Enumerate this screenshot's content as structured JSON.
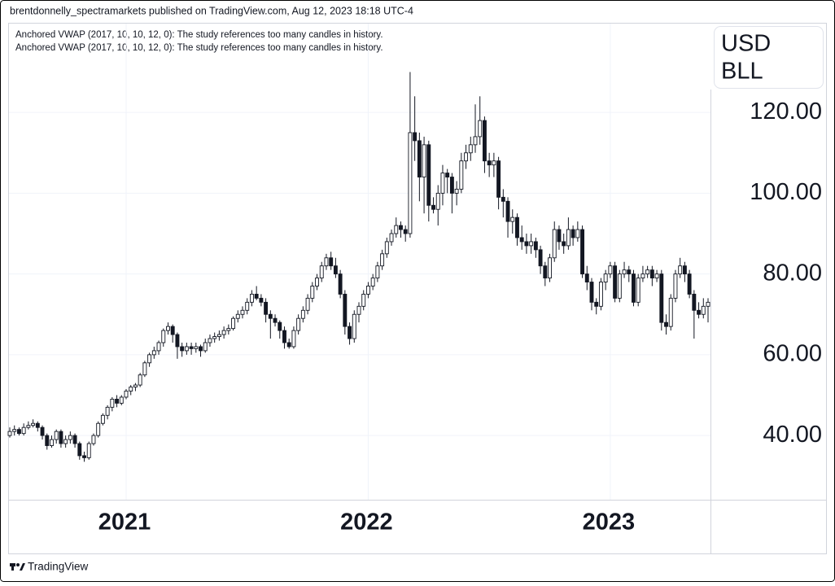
{
  "header": "brentdonnelly_spectramarkets published on TradingView.com, Aug 12, 2023 18:18 UTC-4",
  "footer": "TradingView",
  "chart_data": {
    "type": "candlestick",
    "annotations": [
      "Anchored VWAP (2017, 10, 10, 12, 0): The study references too many candles in history.",
      "Anchored VWAP (2017, 10, 10, 12, 0): The study references too many candles in history."
    ],
    "unit_label": [
      "USD",
      "BLL"
    ],
    "categories": [
      null,
      null,
      null,
      null,
      null,
      null,
      null,
      null,
      null,
      null,
      null,
      null,
      null,
      null,
      null,
      null,
      null,
      null,
      null,
      null,
      null,
      null,
      null,
      null,
      null,
      "2021",
      null,
      null,
      null,
      null,
      null,
      null,
      null,
      null,
      null,
      null,
      null,
      null,
      null,
      null,
      null,
      null,
      null,
      null,
      null,
      null,
      null,
      null,
      null,
      null,
      null,
      null,
      null,
      null,
      null,
      null,
      null,
      null,
      null,
      null,
      null,
      null,
      null,
      null,
      null,
      null,
      null,
      null,
      null,
      null,
      null,
      null,
      null,
      null,
      null,
      null,
      null,
      "2022",
      null,
      null,
      null,
      null,
      null,
      null,
      null,
      null,
      null,
      null,
      null,
      null,
      null,
      null,
      null,
      null,
      null,
      null,
      null,
      null,
      null,
      null,
      null,
      null,
      null,
      null,
      null,
      null,
      null,
      null,
      null,
      null,
      null,
      null,
      null,
      null,
      null,
      null,
      null,
      null,
      null,
      null,
      null,
      null,
      null,
      null,
      null,
      null,
      null,
      null,
      null,
      "2023",
      null,
      null,
      null,
      null,
      null,
      null,
      null,
      null,
      null,
      null,
      null,
      null,
      null,
      null,
      null,
      null,
      null,
      null,
      null,
      null,
      null
    ],
    "ohlc": [
      [
        40,
        42,
        39.5,
        41
      ],
      [
        41,
        42.5,
        40,
        41.5
      ],
      [
        41.5,
        42,
        40,
        40.5
      ],
      [
        40.5,
        43,
        40,
        42
      ],
      [
        42,
        43.5,
        41.5,
        42.5
      ],
      [
        42.5,
        44,
        42,
        43
      ],
      [
        43,
        43.5,
        41,
        42
      ],
      [
        42,
        42.5,
        39,
        40
      ],
      [
        40,
        40.5,
        36.5,
        37.5
      ],
      [
        37.5,
        40,
        37,
        39
      ],
      [
        39,
        41.5,
        38,
        41
      ],
      [
        41,
        41.5,
        37,
        38
      ],
      [
        38,
        40,
        37,
        39
      ],
      [
        39,
        41,
        38,
        40
      ],
      [
        40,
        40.5,
        37,
        38
      ],
      [
        38,
        38.5,
        34,
        35
      ],
      [
        35,
        36,
        33.5,
        34.5
      ],
      [
        34.5,
        38.5,
        34,
        38
      ],
      [
        38,
        40.5,
        37.5,
        40
      ],
      [
        40,
        43.5,
        39.5,
        43
      ],
      [
        43,
        45.5,
        42.5,
        45
      ],
      [
        45,
        47.5,
        44,
        47
      ],
      [
        47,
        49.5,
        46,
        49
      ],
      [
        49,
        50,
        47,
        48
      ],
      [
        48,
        50,
        47.5,
        49.5
      ],
      [
        49.5,
        51.5,
        49,
        51
      ],
      [
        51,
        52.5,
        50,
        52
      ],
      [
        52,
        53,
        51,
        52.5
      ],
      [
        52.5,
        55.5,
        52,
        55
      ],
      [
        55,
        58.5,
        54.5,
        58
      ],
      [
        58,
        60.5,
        57,
        60
      ],
      [
        60,
        62,
        59,
        61
      ],
      [
        61,
        63.5,
        60,
        63
      ],
      [
        63,
        66.5,
        62,
        66
      ],
      [
        66,
        68,
        65,
        67
      ],
      [
        67,
        67.5,
        63,
        65
      ],
      [
        65,
        65.5,
        59,
        62
      ],
      [
        62,
        63,
        59.5,
        61
      ],
      [
        61,
        63,
        60,
        62
      ],
      [
        62,
        63,
        60,
        61.5
      ],
      [
        61.5,
        63,
        60.5,
        62
      ],
      [
        62,
        62.5,
        59.5,
        61
      ],
      [
        61,
        64,
        60.5,
        63
      ],
      [
        63,
        65,
        62,
        64
      ],
      [
        64,
        65.5,
        63,
        64.5
      ],
      [
        64.5,
        66,
        63.5,
        65
      ],
      [
        65,
        67,
        64,
        66
      ],
      [
        66,
        67.5,
        65,
        66.5
      ],
      [
        66.5,
        69.5,
        66,
        69
      ],
      [
        69,
        71,
        68,
        70
      ],
      [
        70,
        72,
        69,
        71
      ],
      [
        71,
        74,
        70,
        73
      ],
      [
        73,
        76,
        72,
        75
      ],
      [
        75,
        77,
        73.5,
        74
      ],
      [
        74,
        75,
        72,
        73
      ],
      [
        73,
        74,
        68,
        70
      ],
      [
        70,
        71,
        64,
        69
      ],
      [
        69,
        70,
        67,
        68
      ],
      [
        68,
        68.5,
        64,
        66
      ],
      [
        66,
        67,
        61.5,
        63
      ],
      [
        63,
        64,
        61.5,
        62
      ],
      [
        62,
        67,
        61.5,
        66
      ],
      [
        66,
        70,
        65,
        69
      ],
      [
        69,
        72,
        68,
        71
      ],
      [
        71,
        75,
        70,
        74
      ],
      [
        74,
        78,
        73,
        77
      ],
      [
        77,
        80,
        76,
        79
      ],
      [
        79,
        83,
        78,
        82
      ],
      [
        82,
        85,
        81,
        84
      ],
      [
        84,
        85.5,
        81,
        82
      ],
      [
        82,
        84,
        79,
        80
      ],
      [
        80,
        81,
        74,
        75
      ],
      [
        75,
        76,
        65,
        67
      ],
      [
        67,
        68,
        62.5,
        64
      ],
      [
        64,
        71,
        63,
        70
      ],
      [
        70,
        73,
        68,
        72
      ],
      [
        72,
        76,
        71,
        75
      ],
      [
        75,
        78,
        74,
        77
      ],
      [
        77,
        80,
        76,
        79
      ],
      [
        79,
        83,
        78,
        82
      ],
      [
        82,
        86,
        81,
        85
      ],
      [
        85,
        89,
        84,
        88
      ],
      [
        88,
        91,
        87,
        90
      ],
      [
        90,
        94,
        89,
        92
      ],
      [
        92,
        93,
        89,
        91
      ],
      [
        91,
        92,
        88,
        90
      ],
      [
        90,
        130,
        89,
        115
      ],
      [
        115,
        124,
        108,
        113
      ],
      [
        113,
        115,
        98,
        104
      ],
      [
        104,
        114,
        95,
        112
      ],
      [
        112,
        113,
        93,
        97
      ],
      [
        97,
        99,
        95,
        96
      ],
      [
        96,
        102,
        92,
        100
      ],
      [
        100,
        107,
        97,
        105
      ],
      [
        105,
        106,
        100,
        104
      ],
      [
        104,
        105,
        95,
        100
      ],
      [
        100,
        103,
        97,
        101
      ],
      [
        101,
        110,
        100,
        108
      ],
      [
        108,
        112,
        106,
        110
      ],
      [
        110,
        114,
        108,
        112
      ],
      [
        112,
        122,
        110,
        114
      ],
      [
        114,
        124,
        112,
        118
      ],
      [
        118,
        119,
        105,
        108
      ],
      [
        108,
        110,
        104,
        107
      ],
      [
        107,
        110,
        104,
        108
      ],
      [
        108,
        109,
        96,
        99
      ],
      [
        99,
        101,
        94,
        98
      ],
      [
        98,
        99,
        89,
        93
      ],
      [
        93,
        96,
        90,
        94
      ],
      [
        94,
        95,
        87,
        89
      ],
      [
        89,
        92,
        86,
        88
      ],
      [
        88,
        90,
        85,
        87
      ],
      [
        87,
        90,
        85,
        88
      ],
      [
        88,
        89,
        84,
        86
      ],
      [
        86,
        87,
        80,
        82
      ],
      [
        82,
        83,
        77,
        79
      ],
      [
        79,
        85,
        78,
        84
      ],
      [
        84,
        93,
        83,
        91
      ],
      [
        91,
        92,
        86,
        88
      ],
      [
        88,
        90,
        85,
        87
      ],
      [
        87,
        94,
        86,
        91
      ],
      [
        91,
        92,
        87,
        89
      ],
      [
        89,
        93,
        88,
        91
      ],
      [
        91,
        92,
        79,
        80
      ],
      [
        80,
        82,
        76,
        78
      ],
      [
        78,
        79,
        71,
        73
      ],
      [
        73,
        74,
        70,
        72
      ],
      [
        72,
        79,
        71,
        78
      ],
      [
        78,
        81,
        76,
        80
      ],
      [
        80,
        83,
        79,
        82
      ],
      [
        82,
        83,
        73,
        74
      ],
      [
        74,
        81,
        73,
        80
      ],
      [
        80,
        83,
        79,
        81
      ],
      [
        81,
        82,
        78,
        80
      ],
      [
        80,
        81,
        72,
        73
      ],
      [
        73,
        80,
        72,
        79
      ],
      [
        79,
        82,
        78,
        80
      ],
      [
        80,
        82,
        79,
        81
      ],
      [
        81,
        82,
        77,
        79
      ],
      [
        79,
        81,
        78,
        80
      ],
      [
        80,
        81,
        66,
        68
      ],
      [
        68,
        70,
        65,
        67
      ],
      [
        67,
        75,
        66,
        74
      ],
      [
        74,
        81,
        73,
        80
      ],
      [
        80,
        84,
        79,
        82
      ],
      [
        82,
        83,
        78,
        80
      ],
      [
        80,
        81,
        74,
        75
      ],
      [
        75,
        76,
        64,
        71
      ],
      [
        71,
        73,
        69,
        70
      ],
      [
        70,
        74,
        69,
        72
      ],
      [
        72,
        74,
        68,
        73
      ]
    ],
    "up_color": "#ffffff",
    "down_color": "#131722",
    "outline_color": "#131722",
    "ylim": [
      24.1,
      142.2
    ],
    "yticks": [
      {
        "value": 40,
        "label": "40.00"
      },
      {
        "value": 60,
        "label": "60.00"
      },
      {
        "value": 80,
        "label": "80.00"
      },
      {
        "value": 100,
        "label": "100.00"
      },
      {
        "value": 120,
        "label": "120.00"
      }
    ],
    "grid": true
  }
}
